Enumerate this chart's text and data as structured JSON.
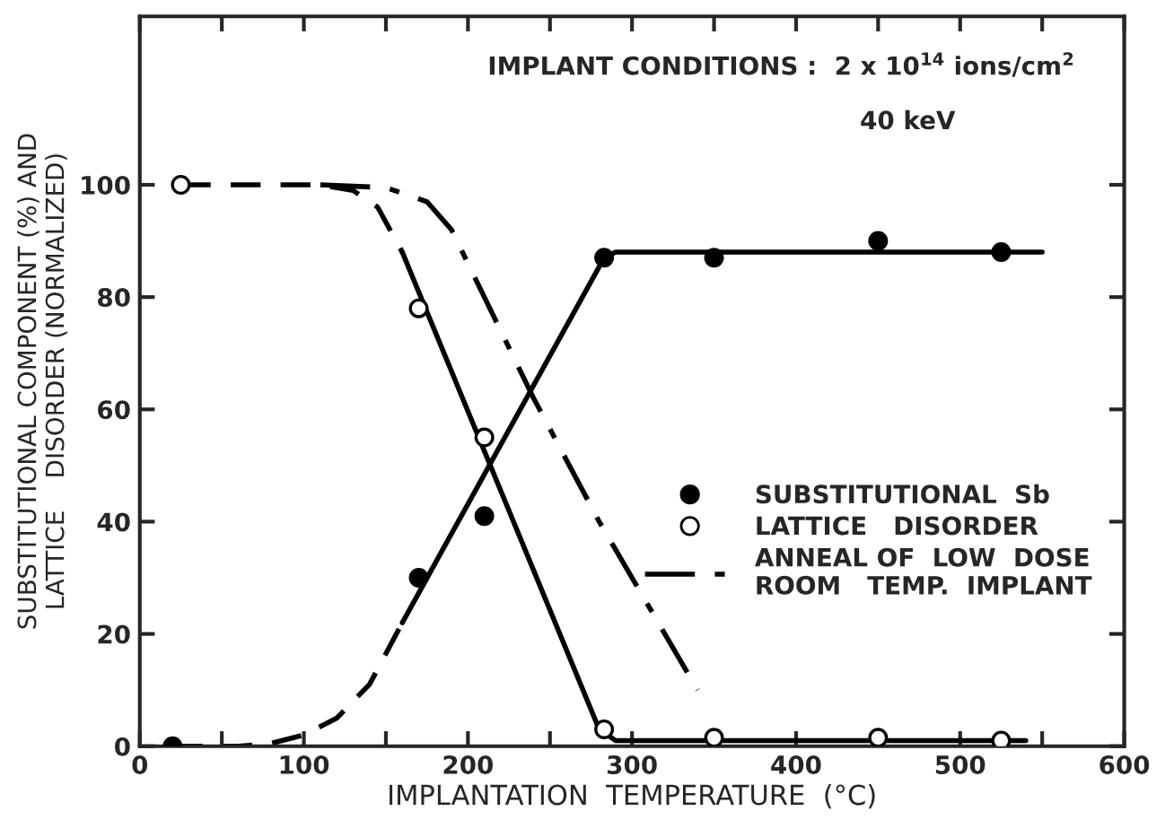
{
  "chart_data": {
    "type": "scatter",
    "xlabel": "IMPLANTATION  TEMPERATURE  (°C)",
    "ylabel": "SUBSTITUTIONAL COMPONENT (%) AND\nLATTICE    DISORDER (NORMALIZED)",
    "annotations": [
      "IMPLANT CONDITIONS :  2 x 10$^{14}$ ions/cm$^{2}$",
      "40 keV"
    ],
    "xlim": [
      0,
      600
    ],
    "ylim": [
      0,
      130
    ],
    "xticks": [
      0,
      {
        "value": 50,
        "label": null
      },
      100,
      {
        "value": 150,
        "label": null
      },
      200,
      {
        "value": 250,
        "label": null
      },
      300,
      {
        "value": 350,
        "label": null
      },
      400,
      {
        "value": 450,
        "label": null
      },
      500,
      {
        "value": 550,
        "label": null
      },
      600
    ],
    "yticks": [
      0,
      20,
      40,
      60,
      80,
      100
    ],
    "grid": false,
    "legend": "right",
    "series": [
      {
        "name": "SUBSTITUTIONAL  Sb",
        "marker": "circle",
        "color": "#000000",
        "x": [
          20,
          170,
          210,
          283,
          350,
          450,
          525
        ],
        "values": [
          0,
          30,
          41,
          87,
          87,
          90,
          88
        ]
      },
      {
        "name": "LATTICE   DISORDER",
        "marker": "circle",
        "color": "#ffffff",
        "x": [
          25,
          170,
          210,
          283,
          350,
          450,
          525
        ],
        "values": [
          100,
          78,
          55,
          3,
          1.5,
          1.5,
          1
        ]
      },
      {
        "name": "ANNEAL OF  LOW  DOSE\nROOM   TEMP.  IMPLANT",
        "type": "line",
        "line_style": "dashdot",
        "color": "#000000",
        "x": [
          110,
          150,
          175,
          190,
          210,
          240,
          280,
          320,
          340
        ],
        "values": [
          100,
          99.5,
          97,
          92,
          80,
          62,
          40,
          20,
          10
        ]
      },
      {
        "type": "line",
        "line_style": "dashed",
        "color": "#000000",
        "x": [
          20,
          60,
          80,
          100,
          120,
          140,
          160
        ],
        "values": [
          0,
          0,
          0.5,
          2,
          5,
          11,
          22
        ]
      },
      {
        "type": "line",
        "line_style": "solid",
        "color": "#000000",
        "x": [
          160,
          283,
          290,
          550
        ],
        "values": [
          22,
          87,
          88,
          88
        ]
      },
      {
        "type": "line",
        "line_style": "dashed",
        "color": "#000000",
        "x": [
          25,
          110,
          130,
          145,
          160
        ],
        "values": [
          100,
          100,
          99,
          96,
          88
        ]
      },
      {
        "type": "line",
        "line_style": "solid",
        "color": "#000000",
        "x": [
          160,
          280,
          290,
          300,
          540
        ],
        "values": [
          88,
          3,
          1,
          1,
          1
        ]
      }
    ]
  }
}
